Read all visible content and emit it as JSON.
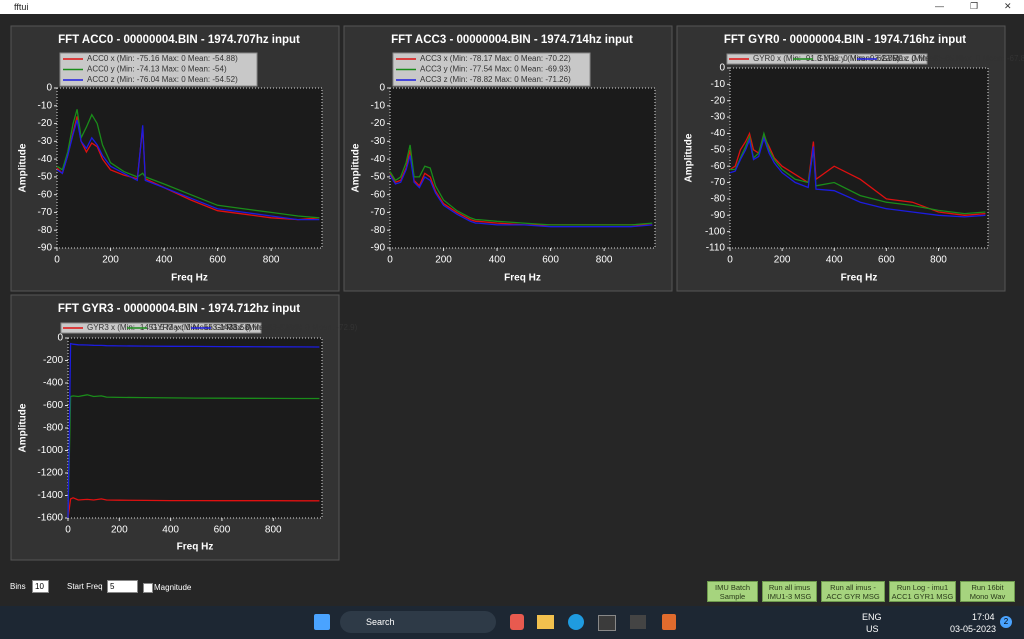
{
  "window": {
    "title": "fftui"
  },
  "chart_data": [
    {
      "type": "line",
      "title": "FFT ACC0 - 00000004.BIN - 1974.707hz input",
      "xlabel": "Freq Hz",
      "ylabel": "Amplitude",
      "legend_layout": "vertical",
      "grid": false,
      "x": [
        0,
        20,
        40,
        60,
        75,
        90,
        110,
        130,
        150,
        170,
        200,
        250,
        300,
        320,
        330,
        400,
        500,
        600,
        700,
        800,
        900,
        980
      ],
      "series": [
        {
          "name": "ACC0 x (Min: -75.16 Max: 0 Mean: -54.88)",
          "color": "#e01010",
          "values": [
            -45,
            -48,
            -38,
            -25,
            -16,
            -30,
            -36,
            -31,
            -33,
            -40,
            -46,
            -49,
            -51,
            -22,
            -51,
            -56,
            -63,
            -69,
            -71,
            -73,
            -74,
            -73
          ]
        },
        {
          "name": "ACC0 y (Min: -74.13 Max: 0 Mean: -54)",
          "color": "#1a8c1a",
          "values": [
            -44,
            -46,
            -36,
            -20,
            -12,
            -28,
            -22,
            -15,
            -20,
            -32,
            -42,
            -47,
            -50,
            -48,
            -50,
            -54,
            -60,
            -66,
            -68,
            -70,
            -72,
            -73
          ]
        },
        {
          "name": "ACC0 z (Min: -76.04 Max: 0 Mean: -54.52)",
          "color": "#1c1ce0",
          "values": [
            -46,
            -48,
            -38,
            -26,
            -18,
            -30,
            -34,
            -28,
            -32,
            -38,
            -44,
            -48,
            -52,
            -21,
            -52,
            -56,
            -62,
            -68,
            -70,
            -72,
            -74,
            -74
          ]
        }
      ],
      "xlim": [
        0,
        990
      ],
      "xticks": [
        0,
        200,
        400,
        600,
        800
      ],
      "ylim": [
        -90,
        0
      ],
      "yticks": [
        0,
        -10,
        -20,
        -30,
        -40,
        -50,
        -60,
        -70,
        -80,
        -90
      ]
    },
    {
      "type": "line",
      "title": "FFT ACC3 - 00000004.BIN - 1974.714hz input",
      "xlabel": "Freq Hz",
      "ylabel": "Amplitude",
      "legend_layout": "vertical",
      "grid": false,
      "x": [
        0,
        20,
        40,
        60,
        75,
        90,
        110,
        130,
        150,
        170,
        200,
        250,
        300,
        320,
        330,
        400,
        500,
        600,
        700,
        800,
        900,
        980
      ],
      "series": [
        {
          "name": "ACC3 x (Min: -78.17 Max: 0 Mean: -70.22)",
          "color": "#e01010",
          "values": [
            -48,
            -53,
            -52,
            -45,
            -35,
            -52,
            -55,
            -48,
            -50,
            -58,
            -65,
            -70,
            -74,
            -75,
            -75,
            -76,
            -77,
            -77,
            -77,
            -77,
            -77,
            -77
          ]
        },
        {
          "name": "ACC3 y (Min: -77.54 Max: 0 Mean: -69.93)",
          "color": "#1a8c1a",
          "values": [
            -47,
            -52,
            -50,
            -42,
            -32,
            -50,
            -50,
            -44,
            -45,
            -55,
            -63,
            -69,
            -73,
            -74,
            -74,
            -75,
            -76,
            -77,
            -77,
            -77,
            -77,
            -76
          ]
        },
        {
          "name": "ACC3 z (Min: -78.82 Max: 0 Mean: -71.26)",
          "color": "#1c1ce0",
          "values": [
            -49,
            -54,
            -53,
            -46,
            -38,
            -53,
            -56,
            -50,
            -52,
            -59,
            -66,
            -71,
            -75,
            -76,
            -76,
            -77,
            -77,
            -78,
            -78,
            -78,
            -78,
            -77
          ]
        }
      ],
      "xlim": [
        0,
        990
      ],
      "xticks": [
        0,
        200,
        400,
        600,
        800
      ],
      "ylim": [
        -90,
        0
      ],
      "yticks": [
        0,
        -10,
        -20,
        -30,
        -40,
        -50,
        -60,
        -70,
        -80,
        -90
      ]
    },
    {
      "type": "line",
      "title": "FFT GYR0 - 00000004.BIN - 1974.716hz input",
      "xlabel": "Freq Hz",
      "ylabel": "Amplitude",
      "legend_layout": "horizontal",
      "grid": false,
      "x": [
        0,
        20,
        40,
        60,
        75,
        90,
        110,
        130,
        150,
        170,
        200,
        250,
        300,
        320,
        330,
        400,
        500,
        600,
        700,
        800,
        900,
        980
      ],
      "series": [
        {
          "name": "GYR0 x (Min: -91.3 Max: 0 Mean: -62.05)",
          "color": "#e01010",
          "values": [
            -62,
            -60,
            -50,
            -45,
            -40,
            -50,
            -52,
            -42,
            -48,
            -55,
            -60,
            -65,
            -70,
            -45,
            -68,
            -60,
            -68,
            -80,
            -82,
            -88,
            -90,
            -89
          ]
        },
        {
          "name": "GYR0 y (Min: -93.12 Max: 0 Mean: -65.4)",
          "color": "#1a8c1a",
          "values": [
            -62,
            -62,
            -55,
            -48,
            -42,
            -55,
            -52,
            -40,
            -50,
            -56,
            -62,
            -68,
            -70,
            -50,
            -72,
            -70,
            -78,
            -82,
            -84,
            -87,
            -89,
            -88
          ]
        },
        {
          "name": "GYR0 z (Min: -95.05 Max: 0 Mean: -67.8)",
          "color": "#1c1ce0",
          "values": [
            -64,
            -63,
            -56,
            -50,
            -44,
            -56,
            -54,
            -43,
            -52,
            -58,
            -64,
            -70,
            -73,
            -48,
            -74,
            -75,
            -82,
            -86,
            -88,
            -90,
            -91,
            -90
          ]
        }
      ],
      "xlim": [
        0,
        990
      ],
      "xticks": [
        0,
        200,
        400,
        600,
        800
      ],
      "ylim": [
        -110,
        0
      ],
      "yticks": [
        0,
        -10,
        -20,
        -30,
        -40,
        -50,
        -60,
        -70,
        -80,
        -90,
        -100,
        -110
      ]
    },
    {
      "type": "line",
      "title": "FFT GYR3 - 00000004.BIN - 1974.712hz input",
      "xlabel": "Freq Hz",
      "ylabel": "Amplitude",
      "legend_layout": "horizontal",
      "grid": false,
      "x": [
        0,
        10,
        20,
        40,
        75,
        100,
        130,
        150,
        200,
        300,
        400,
        500,
        600,
        700,
        800,
        900,
        980
      ],
      "series": [
        {
          "name": "GYR3 x (Min: -1451.5 Max: 0 Mean: -1433.58)",
          "color": "#e01010",
          "values": [
            -1600,
            -1430,
            -1420,
            -1440,
            -1435,
            -1440,
            -1430,
            -1440,
            -1442,
            -1444,
            -1445,
            -1445,
            -1446,
            -1446,
            -1446,
            -1447,
            -1447
          ]
        },
        {
          "name": "GYR3 y (Min: -553.1 Max: 0 Mean: -538.2)",
          "color": "#1a8c1a",
          "values": [
            -1600,
            -520,
            -515,
            -520,
            -505,
            -520,
            -515,
            -525,
            -528,
            -530,
            -532,
            -534,
            -535,
            -536,
            -537,
            -538,
            -538
          ]
        },
        {
          "name": "GYR3 z (Min: -93.4 Max: 0 Mean: -72.9)",
          "color": "#1c1ce0",
          "values": [
            -1600,
            -50,
            -55,
            -60,
            -62,
            -65,
            -66,
            -68,
            -70,
            -72,
            -74,
            -75,
            -76,
            -77,
            -78,
            -79,
            -80
          ]
        }
      ],
      "xlim": [
        0,
        990
      ],
      "xticks": [
        0,
        200,
        400,
        600,
        800
      ],
      "ylim": [
        -1600,
        0
      ],
      "yticks": [
        0,
        -200,
        -400,
        -600,
        -800,
        -1000,
        -1200,
        -1400,
        -1600
      ]
    }
  ],
  "controls": {
    "bins_label": "Bins",
    "bins_value": 10,
    "start_freq_label": "Start Freq",
    "start_freq_value": 5,
    "magnitude_label": "Magnitude",
    "buttons": [
      [
        "IMU Batch",
        "Sample"
      ],
      [
        "Run all imus",
        "IMU1-3 MSG"
      ],
      [
        "Run all imus -",
        "ACC GYR MSG"
      ],
      [
        "Run Log - imu1",
        "ACC1 GYR1 MSG"
      ],
      [
        "Run 16bit",
        "Mono Wav"
      ]
    ]
  },
  "taskbar": {
    "search": "Search",
    "language": "ENG",
    "region": "US",
    "time": "17:04",
    "date": "03-05-2023",
    "notifications": 2
  }
}
